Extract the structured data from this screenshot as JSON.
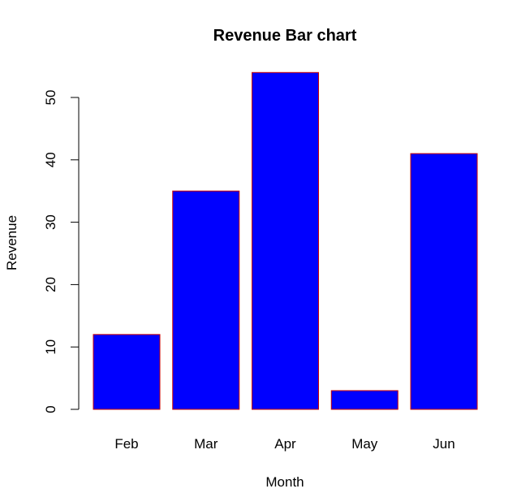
{
  "chart_data": {
    "type": "bar",
    "title": "Revenue Bar chart",
    "xlabel": "Month",
    "ylabel": "Revenue",
    "categories": [
      "Feb",
      "Mar",
      "Apr",
      "May",
      "Jun"
    ],
    "values": [
      12,
      35,
      54,
      3,
      41
    ],
    "ylim": [
      0,
      55
    ],
    "yticks": [
      0,
      10,
      20,
      30,
      40,
      50
    ],
    "ytick_labels": [
      "0",
      "10",
      "20",
      "30",
      "40",
      "50"
    ],
    "grid": false,
    "legend": "none",
    "bar_fill_color": "#0000ff",
    "bar_border_color": "#cc0000"
  }
}
